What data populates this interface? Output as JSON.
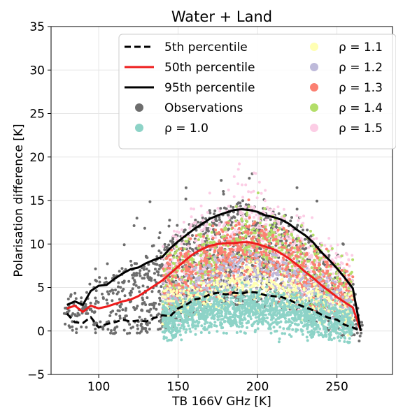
{
  "chart_data": {
    "type": "scatter",
    "title": "Water + Land",
    "xlabel": "TB 166V GHz [K]",
    "ylabel": "Polarisation difference [K]",
    "xlim": [
      70,
      285
    ],
    "ylim": [
      -5,
      35
    ],
    "xticks": [
      100,
      150,
      200,
      250
    ],
    "yticks": [
      -5,
      0,
      5,
      10,
      15,
      20,
      25,
      30,
      35
    ],
    "grid": true,
    "legend_position": "top-right",
    "lines": [
      {
        "name": "5th percentile",
        "color": "#000000",
        "style": "dashed",
        "x": [
          80,
          85,
          90,
          95,
          100,
          105,
          110,
          115,
          120,
          125,
          130,
          135,
          140,
          145,
          150,
          155,
          160,
          165,
          170,
          175,
          180,
          185,
          190,
          195,
          200,
          205,
          210,
          215,
          220,
          225,
          230,
          235,
          240,
          245,
          250,
          255,
          260,
          265
        ],
        "y": [
          2.0,
          1.0,
          0.9,
          1.6,
          0.4,
          0.8,
          1.0,
          1.3,
          1.1,
          1.2,
          1.1,
          1.5,
          1.8,
          1.7,
          2.6,
          3.0,
          3.6,
          3.8,
          4.2,
          4.4,
          4.2,
          4.4,
          4.3,
          4.5,
          4.4,
          4.1,
          4.0,
          3.9,
          3.6,
          3.1,
          2.7,
          2.4,
          1.9,
          1.5,
          1.3,
          0.7,
          0.4,
          0.0
        ]
      },
      {
        "name": "50th percentile",
        "color": "#ee1c1c",
        "style": "solid",
        "x": [
          80,
          85,
          90,
          95,
          100,
          105,
          110,
          115,
          120,
          125,
          130,
          135,
          140,
          145,
          150,
          155,
          160,
          165,
          170,
          175,
          180,
          185,
          190,
          195,
          200,
          205,
          210,
          215,
          220,
          225,
          230,
          235,
          240,
          245,
          250,
          255,
          260,
          265
        ],
        "y": [
          2.6,
          2.9,
          2.2,
          2.9,
          2.6,
          2.8,
          3.1,
          3.4,
          3.6,
          4.0,
          4.6,
          5.2,
          5.8,
          6.6,
          7.4,
          8.2,
          8.9,
          9.4,
          9.8,
          10.0,
          10.1,
          10.1,
          10.2,
          10.2,
          10.0,
          9.7,
          9.4,
          8.9,
          8.3,
          7.6,
          6.8,
          6.1,
          5.3,
          4.6,
          3.9,
          3.3,
          2.7,
          0.0
        ]
      },
      {
        "name": "95th percentile",
        "color": "#000000",
        "style": "solid",
        "x": [
          80,
          85,
          90,
          95,
          100,
          105,
          110,
          115,
          120,
          125,
          130,
          135,
          140,
          145,
          150,
          155,
          160,
          165,
          170,
          175,
          180,
          185,
          190,
          195,
          200,
          205,
          210,
          215,
          220,
          225,
          230,
          235,
          240,
          245,
          250,
          255,
          260,
          265
        ],
        "y": [
          3.0,
          3.4,
          3.0,
          4.6,
          5.2,
          5.3,
          6.0,
          6.6,
          7.1,
          7.3,
          7.8,
          8.2,
          8.5,
          9.5,
          10.3,
          11.0,
          11.7,
          12.3,
          12.9,
          13.3,
          13.6,
          13.9,
          14.0,
          13.9,
          13.7,
          13.3,
          13.1,
          12.8,
          12.3,
          11.6,
          11.0,
          10.2,
          9.1,
          8.2,
          7.2,
          6.1,
          4.9,
          0.0
        ]
      }
    ],
    "scatter_series": [
      {
        "name": "Observations",
        "color": "#6d6d6d"
      },
      {
        "name": "ρ = 1.0",
        "color": "#8dd3c7"
      },
      {
        "name": "ρ = 1.1",
        "color": "#ffffb3"
      },
      {
        "name": "ρ = 1.2",
        "color": "#bebada"
      },
      {
        "name": "ρ = 1.3",
        "color": "#fb8072"
      },
      {
        "name": "ρ = 1.4",
        "color": "#b3de69"
      },
      {
        "name": "ρ = 1.5",
        "color": "#fccde5"
      }
    ],
    "legend": {
      "col1": [
        "5th percentile",
        "50th percentile",
        "95th percentile",
        "Observations",
        "ρ = 1.0"
      ],
      "col2": [
        "ρ = 1.1",
        "ρ = 1.2",
        "ρ = 1.3",
        "ρ = 1.4",
        "ρ = 1.5"
      ]
    }
  }
}
